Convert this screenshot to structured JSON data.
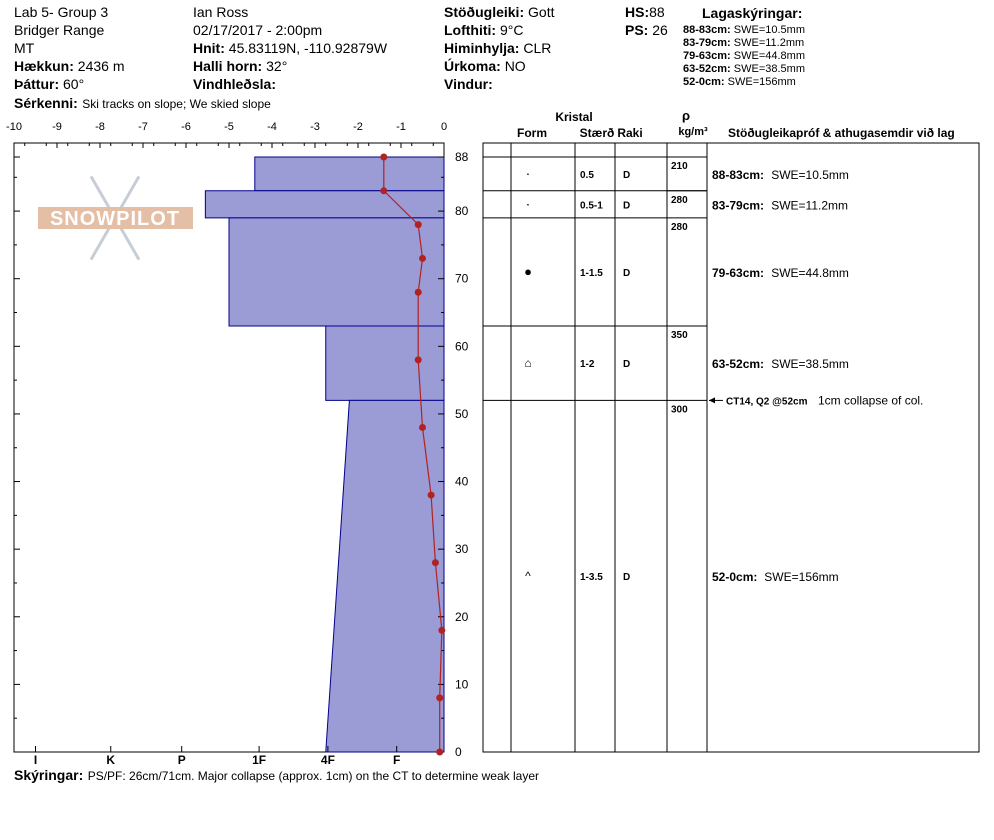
{
  "header": {
    "col1": {
      "location": "Lab 5- Group 3",
      "range": "Bridger Range",
      "state": "MT",
      "elevation_label": "Hækkun:",
      "elevation_value": "2436 m",
      "aspect_label": "Þáttur:",
      "aspect_value": "60°"
    },
    "col2": {
      "observer": "Ian Ross",
      "datetime": "02/17/2017 - 2:00pm",
      "coords_label": "Hnit:",
      "coords_value": "45.83119N, -110.92879W",
      "slope_label": "Halli horn:",
      "slope_value": "32°",
      "wind_label": "Vindhleðsla:",
      "wind_value": ""
    },
    "col3": {
      "stability_label": "Stöðugleiki:",
      "stability_value": "Gott",
      "airtemp_label": "Lofthiti:",
      "airtemp_value": "9°C",
      "sky_label": "Himinhylja:",
      "sky_value": "CLR",
      "precip_label": "Úrkoma:",
      "precip_value": "NO",
      "windsp_label": "Vindur:",
      "windsp_value": ""
    },
    "col4": {
      "hs_label": "HS:",
      "hs_value": "88",
      "ps_label": "PS:",
      "ps_value": "26"
    },
    "legend": {
      "title": "Lagaskýringar:",
      "rows": [
        {
          "range": "88-83cm:",
          "swe": "SWE=10.5mm"
        },
        {
          "range": "83-79cm:",
          "swe": "SWE=11.2mm"
        },
        {
          "range": "79-63cm:",
          "swe": "SWE=44.8mm"
        },
        {
          "range": "63-52cm:",
          "swe": "SWE=38.5mm"
        },
        {
          "range": "52-0cm:",
          "swe": "SWE=156mm"
        }
      ]
    },
    "features_label": "Sérkenni:",
    "features_value": "Ski tracks on slope; We skied slope"
  },
  "footer": {
    "notes_label": "Skýringar:",
    "notes_value": "PS/PF: 26cm/71cm.  Major collapse (approx. 1cm) on the CT to determine weak layer"
  },
  "watermark": "SNOWPILOT",
  "colors": {
    "layer_fill": "#9b9bd6",
    "layer_stroke": "#00008b",
    "temp": "#b22222"
  },
  "chart_data": {
    "type": "snow-profile",
    "temperature_axis": {
      "ticks": [
        "-10",
        "-9",
        "-8",
        "-7",
        "-6",
        "-5",
        "-4",
        "-3",
        "-2",
        "-1",
        "0"
      ],
      "range": [
        -10,
        0
      ]
    },
    "hardness_axis": {
      "ticks": [
        "I",
        "K",
        "P",
        "1F",
        "4F",
        "F"
      ],
      "scale": [
        {
          "label": "I",
          "temp": -9.5
        },
        {
          "label": "K",
          "temp": -7.75
        },
        {
          "label": "P",
          "temp": -6.1
        },
        {
          "label": "1F",
          "temp": -4.3
        },
        {
          "label": "4F",
          "temp": -2.7
        },
        {
          "label": "F",
          "temp": -1.1
        }
      ]
    },
    "height_axis": {
      "ticks": [
        "0",
        "10",
        "20",
        "30",
        "40",
        "50",
        "60",
        "70",
        "80",
        "88"
      ],
      "range": [
        0,
        88
      ]
    },
    "layers": [
      {
        "top": 88,
        "bottom": 83,
        "hardness_top": "4F-",
        "hardness_bottom": "4F-",
        "h_top": -4.4,
        "h_bottom": -4.4
      },
      {
        "top": 83,
        "bottom": 79,
        "hardness_top": "1F",
        "hardness_bottom": "1F",
        "h_top": -5.55,
        "h_bottom": -5.55
      },
      {
        "top": 79,
        "bottom": 63,
        "hardness_top": "1F+",
        "hardness_bottom": "1F+",
        "h_top": -5.0,
        "h_bottom": -5.0
      },
      {
        "top": 63,
        "bottom": 52,
        "hardness_top": "4F",
        "hardness_bottom": "4F",
        "h_top": -2.75,
        "h_bottom": -2.75
      },
      {
        "top": 52,
        "bottom": 0,
        "hardness_top": "4F+",
        "hardness_bottom": "4F",
        "h_top": -2.2,
        "h_bottom": -2.75
      }
    ],
    "temperature_profile": [
      {
        "depth": 88,
        "temp": -1.4
      },
      {
        "depth": 83,
        "temp": -1.4
      },
      {
        "depth": 78,
        "temp": -0.6
      },
      {
        "depth": 73,
        "temp": -0.5
      },
      {
        "depth": 68,
        "temp": -0.6
      },
      {
        "depth": 58,
        "temp": -0.6
      },
      {
        "depth": 48,
        "temp": -0.5
      },
      {
        "depth": 38,
        "temp": -0.3
      },
      {
        "depth": 28,
        "temp": -0.2
      },
      {
        "depth": 18,
        "temp": -0.05
      },
      {
        "depth": 8,
        "temp": -0.1
      },
      {
        "depth": 0,
        "temp": -0.1
      }
    ],
    "table_headers": {
      "crystal": "Kristal",
      "form": "Form",
      "size": "Stærð",
      "moisture": "Raki",
      "rho": "ρ",
      "density_unit": "kg/m³",
      "stability": "Stöðugleikapróf & athugasemdir við lag"
    },
    "crystal_rows": [
      {
        "top": 88,
        "bottom": 83,
        "form": "·",
        "size": "0.5",
        "moisture": "D",
        "density": "210",
        "note_label": "88-83cm:",
        "note": "SWE=10.5mm"
      },
      {
        "top": 83,
        "bottom": 79,
        "form": "·",
        "size": "0.5-1",
        "moisture": "D",
        "density": "280",
        "note_label": "83-79cm:",
        "note": "SWE=11.2mm"
      },
      {
        "top": 79,
        "bottom": 63,
        "form": "●",
        "size": "1-1.5",
        "moisture": "D",
        "density": "280",
        "note_label": "79-63cm:",
        "note": "SWE=44.8mm"
      },
      {
        "top": 63,
        "bottom": 52,
        "form": "⌂",
        "size": "1-2",
        "moisture": "D",
        "density": "350",
        "note_label": "63-52cm:",
        "note": "SWE=38.5mm"
      },
      {
        "top": 52,
        "bottom": 0,
        "form": "^",
        "size": "1-3.5",
        "moisture": "D",
        "density": "300",
        "note_label": "52-0cm:",
        "note": "SWE=156mm"
      }
    ],
    "stability_test": {
      "depth": 52,
      "label": "CT14, Q2 @52cm",
      "comment": "1cm collapse of col."
    }
  }
}
